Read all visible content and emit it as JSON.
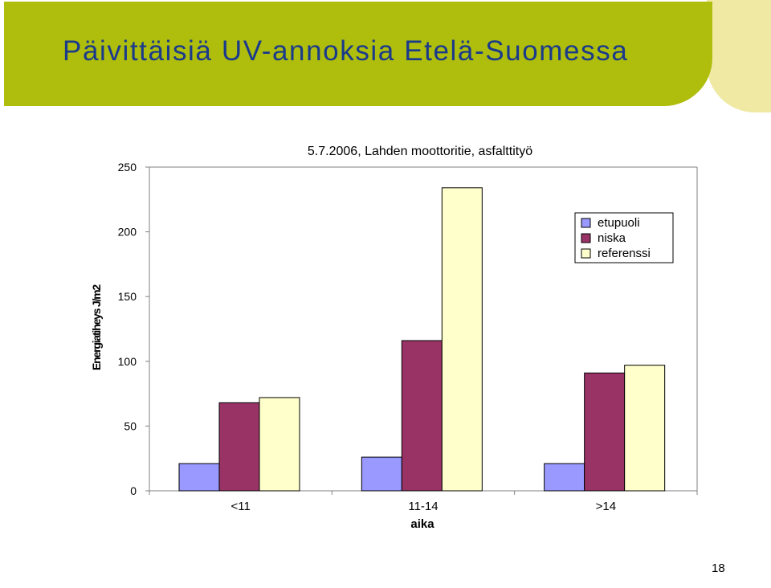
{
  "slide": {
    "title": "Päivittäisiä UV-annoksia Etelä-Suomessa",
    "page_number": "18",
    "footer": ""
  },
  "colors": {
    "header_band": "#afbd0c",
    "header_band_light": "#efe9a4",
    "title_text": "#1a3a8c",
    "etupuoli": "#9999ff",
    "niska": "#993366",
    "referenssi": "#ffffcc"
  },
  "chart_data": {
    "type": "bar",
    "title": "5.7.2006, Lahden moottoritie, asfalttityö",
    "xlabel": "aika",
    "ylabel": "Energiatiheys J/m2",
    "categories": [
      "<11",
      "11-14",
      ">14"
    ],
    "series": [
      {
        "name": "etupuoli",
        "values": [
          21,
          26,
          21
        ]
      },
      {
        "name": "niska",
        "values": [
          68,
          116,
          91
        ]
      },
      {
        "name": "referenssi",
        "values": [
          72,
          234,
          97
        ]
      }
    ],
    "ylim": [
      0,
      250
    ],
    "yticks": [
      "0",
      "50",
      "100",
      "150",
      "200",
      "250"
    ],
    "grid": false,
    "legend": "top-right"
  }
}
